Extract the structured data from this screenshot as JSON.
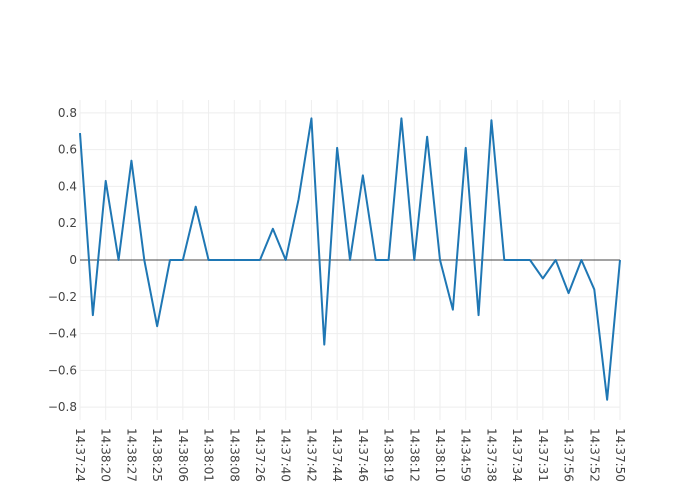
{
  "colors": {
    "series": "#1f77b4",
    "grid": "#eeeeee",
    "zeroline": "#444444",
    "tick_text": "#444444",
    "background": "#ffffff"
  },
  "chart_data": {
    "type": "line",
    "title": "",
    "xlabel": "",
    "ylabel": "",
    "grid": true,
    "legend": "none",
    "ylim": [
      -0.87,
      0.87
    ],
    "yticks": [
      -0.8,
      -0.6,
      -0.4,
      -0.2,
      0,
      0.2,
      0.4,
      0.6,
      0.8
    ],
    "ytick_labels": [
      "−0.8",
      "−0.6",
      "−0.4",
      "−0.2",
      "0",
      "0.2",
      "0.4",
      "0.6",
      "0.8"
    ],
    "x_tick_labels": [
      "14:37:24",
      "14:38:20",
      "14:38:27",
      "14:38:25",
      "14:38:06",
      "14:38:01",
      "14:38:08",
      "14:37:26",
      "14:37:40",
      "14:37:42",
      "14:37:44",
      "14:37:46",
      "14:38:19",
      "14:38:12",
      "14:38:10",
      "14:34:59",
      "14:37:38",
      "14:37:34",
      "14:37:31",
      "14:37:56",
      "14:37:52",
      "14:37:50"
    ],
    "series": [
      {
        "values": [
          0.69,
          -0.3,
          0.43,
          0.0,
          0.54,
          0.0,
          -0.36,
          0.0,
          0.0,
          0.29,
          0.0,
          0.0,
          0.0,
          0.0,
          0.0,
          0.17,
          0.0,
          0.33,
          0.77,
          -0.46,
          0.61,
          0.0,
          0.46,
          0.0,
          0.0,
          0.77,
          0.0,
          0.67,
          0.0,
          -0.27,
          0.61,
          -0.3,
          0.76,
          0.0,
          0.0,
          0.0,
          -0.1,
          0.0,
          -0.18,
          0.0,
          -0.16,
          -0.76,
          0.0
        ]
      }
    ]
  }
}
